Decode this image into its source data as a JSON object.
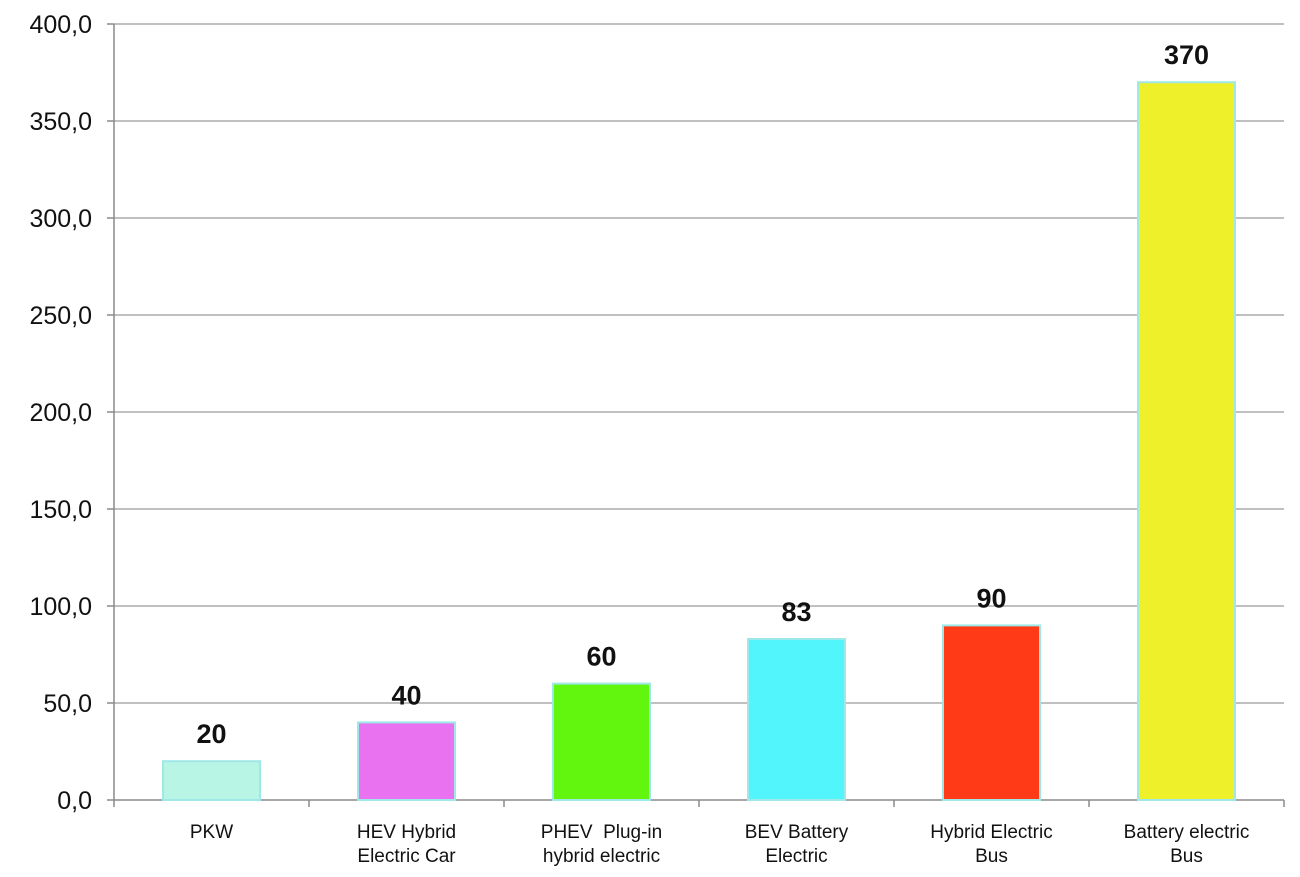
{
  "chart_data": {
    "type": "bar",
    "categories": [
      [
        "PKW"
      ],
      [
        "HEV Hybrid",
        "Electric Car"
      ],
      [
        "PHEV  Plug-in",
        "hybrid electric"
      ],
      [
        "BEV Battery",
        "Electric"
      ],
      [
        "Hybrid Electric",
        "Bus"
      ],
      [
        "Battery electric",
        "Bus"
      ]
    ],
    "values": [
      20,
      40,
      60,
      83,
      90,
      370
    ],
    "data_labels": [
      "20",
      "40",
      "60",
      "83",
      "90",
      "370"
    ],
    "colors": [
      "#b9f5e4",
      "#e872f0",
      "#62f50e",
      "#52f5fc",
      "#ff3b17",
      "#eef02a"
    ],
    "ylim": [
      0,
      400
    ],
    "yticks": [
      0,
      50,
      100,
      150,
      200,
      250,
      300,
      350,
      400
    ],
    "ytick_labels": [
      "0,0",
      "50,0",
      "100,0",
      "150,0",
      "200,0",
      "250,0",
      "300,0",
      "350,0",
      "400,0"
    ],
    "grid": true,
    "title": "",
    "xlabel": "",
    "ylabel": ""
  }
}
